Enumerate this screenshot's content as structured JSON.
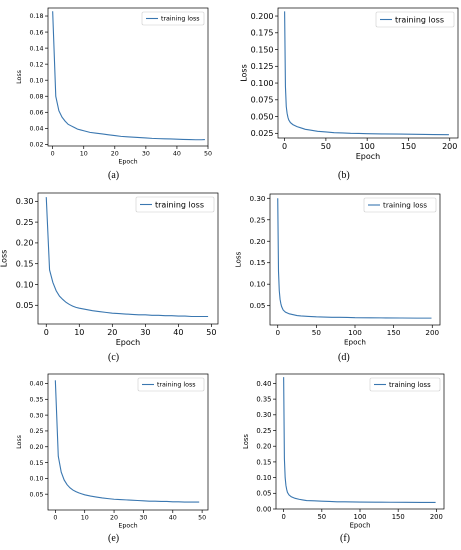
{
  "figure": {
    "panel_labels": [
      "(a)",
      "(b)",
      "(c)",
      "(d)",
      "(e)",
      "(f)"
    ]
  },
  "style": {
    "line_color": "#3a77b0",
    "axis_color": "#000000"
  },
  "chart_data": [
    {
      "type": "line",
      "xlabel": "Epoch",
      "ylabel": "Loss",
      "xlim": [
        -1.5,
        50
      ],
      "ylim": [
        0.018,
        0.19
      ],
      "xticks": [
        0,
        10,
        20,
        30,
        40,
        50
      ],
      "yticks": [
        0.02,
        0.04,
        0.06,
        0.08,
        0.1,
        0.12,
        0.14,
        0.16,
        0.18
      ],
      "ytick_labels": [
        "0.02",
        "0.04",
        "0.06",
        "0.08",
        "0.10",
        "0.12",
        "0.14",
        "0.16",
        "0.18"
      ],
      "legend": "top-right",
      "series": [
        {
          "name": "training loss",
          "x": [
            0,
            1,
            2,
            3,
            4,
            5,
            6,
            7,
            8,
            9,
            10,
            12,
            14,
            16,
            18,
            20,
            22,
            24,
            26,
            28,
            30,
            32,
            34,
            36,
            38,
            40,
            42,
            44,
            46,
            48,
            49
          ],
          "y": [
            0.186,
            0.08,
            0.062,
            0.054,
            0.049,
            0.045,
            0.043,
            0.041,
            0.039,
            0.038,
            0.037,
            0.035,
            0.034,
            0.033,
            0.032,
            0.031,
            0.03,
            0.0295,
            0.029,
            0.0285,
            0.028,
            0.0275,
            0.0272,
            0.027,
            0.0268,
            0.0265,
            0.0262,
            0.026,
            0.0258,
            0.0258,
            0.026
          ]
        }
      ]
    },
    {
      "type": "line",
      "xlabel": "Epoch",
      "ylabel": "Loss",
      "xlim": [
        -8,
        210
      ],
      "ylim": [
        0.018,
        0.212
      ],
      "xticks": [
        0,
        50,
        100,
        150,
        200
      ],
      "yticks": [
        0.025,
        0.05,
        0.075,
        0.1,
        0.125,
        0.15,
        0.175,
        0.2
      ],
      "ytick_labels": [
        "0.025",
        "0.050",
        "0.075",
        "0.100",
        "0.125",
        "0.150",
        "0.175",
        "0.200"
      ],
      "legend": "top-right",
      "series": [
        {
          "name": "training loss",
          "x": [
            0,
            1,
            2,
            3,
            4,
            5,
            7,
            10,
            15,
            20,
            25,
            30,
            40,
            50,
            60,
            70,
            80,
            90,
            100,
            120,
            140,
            160,
            180,
            199
          ],
          "y": [
            0.207,
            0.095,
            0.065,
            0.055,
            0.049,
            0.045,
            0.041,
            0.038,
            0.035,
            0.033,
            0.031,
            0.03,
            0.028,
            0.027,
            0.026,
            0.0255,
            0.025,
            0.0248,
            0.0245,
            0.024,
            0.0238,
            0.0235,
            0.0232,
            0.023
          ]
        }
      ]
    },
    {
      "type": "line",
      "xlabel": "Epoch",
      "ylabel": "Loss",
      "xlim": [
        -2.5,
        52
      ],
      "ylim": [
        0.005,
        0.32
      ],
      "xticks": [
        0,
        10,
        20,
        30,
        40,
        50
      ],
      "yticks": [
        0.05,
        0.1,
        0.15,
        0.2,
        0.25,
        0.3
      ],
      "ytick_labels": [
        "0.05",
        "0.10",
        "0.15",
        "0.20",
        "0.25",
        "0.30"
      ],
      "legend": "top-right",
      "series": [
        {
          "name": "training loss",
          "x": [
            0,
            1,
            2,
            3,
            4,
            5,
            6,
            7,
            8,
            9,
            10,
            12,
            14,
            16,
            18,
            20,
            22,
            24,
            26,
            28,
            30,
            32,
            34,
            36,
            38,
            40,
            42,
            44,
            46,
            48,
            49
          ],
          "y": [
            0.31,
            0.135,
            0.105,
            0.085,
            0.072,
            0.064,
            0.057,
            0.052,
            0.048,
            0.045,
            0.043,
            0.04,
            0.037,
            0.035,
            0.033,
            0.031,
            0.03,
            0.029,
            0.028,
            0.027,
            0.027,
            0.026,
            0.026,
            0.025,
            0.025,
            0.024,
            0.024,
            0.023,
            0.023,
            0.023,
            0.023
          ]
        }
      ]
    },
    {
      "type": "line",
      "xlabel": "Epoch",
      "ylabel": "Loss",
      "xlim": [
        -10,
        210
      ],
      "ylim": [
        0.005,
        0.31
      ],
      "xticks": [
        0,
        50,
        100,
        150,
        200
      ],
      "yticks": [
        0.05,
        0.1,
        0.15,
        0.2,
        0.25,
        0.3
      ],
      "ytick_labels": [
        "0.05",
        "0.10",
        "0.15",
        "0.20",
        "0.25",
        "0.30"
      ],
      "legend": "top-right",
      "series": [
        {
          "name": "training loss",
          "x": [
            0,
            1,
            2,
            3,
            4,
            5,
            7,
            10,
            15,
            20,
            25,
            30,
            40,
            50,
            60,
            70,
            80,
            90,
            100,
            120,
            140,
            160,
            180,
            199
          ],
          "y": [
            0.3,
            0.13,
            0.085,
            0.065,
            0.055,
            0.048,
            0.04,
            0.035,
            0.031,
            0.029,
            0.027,
            0.026,
            0.025,
            0.024,
            0.0235,
            0.023,
            0.0228,
            0.0225,
            0.022,
            0.0218,
            0.0215,
            0.0213,
            0.021,
            0.021
          ]
        }
      ]
    },
    {
      "type": "line",
      "xlabel": "Epoch",
      "ylabel": "Loss",
      "xlim": [
        -2.5,
        52
      ],
      "ylim": [
        0.0,
        0.43
      ],
      "xticks": [
        0,
        10,
        20,
        30,
        40,
        50
      ],
      "yticks": [
        0.05,
        0.1,
        0.15,
        0.2,
        0.25,
        0.3,
        0.35,
        0.4
      ],
      "ytick_labels": [
        "0.05",
        "0.10",
        "0.15",
        "0.20",
        "0.25",
        "0.30",
        "0.35",
        "0.40"
      ],
      "legend": "top-right",
      "series": [
        {
          "name": "training loss",
          "x": [
            0,
            1,
            2,
            3,
            4,
            5,
            6,
            7,
            8,
            9,
            10,
            12,
            14,
            16,
            18,
            20,
            22,
            24,
            26,
            28,
            30,
            32,
            34,
            36,
            38,
            40,
            42,
            44,
            46,
            48,
            49
          ],
          "y": [
            0.41,
            0.17,
            0.12,
            0.095,
            0.08,
            0.07,
            0.063,
            0.058,
            0.054,
            0.051,
            0.048,
            0.044,
            0.041,
            0.038,
            0.036,
            0.034,
            0.033,
            0.032,
            0.031,
            0.03,
            0.029,
            0.028,
            0.028,
            0.027,
            0.027,
            0.026,
            0.026,
            0.025,
            0.025,
            0.025,
            0.025
          ]
        }
      ]
    },
    {
      "type": "line",
      "xlabel": "Epoch",
      "ylabel": "Loss",
      "xlim": [
        -10,
        210
      ],
      "ylim": [
        0.0,
        0.43
      ],
      "xticks": [
        0,
        50,
        100,
        150,
        200
      ],
      "yticks": [
        0.0,
        0.05,
        0.1,
        0.15,
        0.2,
        0.25,
        0.3,
        0.35,
        0.4
      ],
      "ytick_labels": [
        "0.00",
        "0.05",
        "0.10",
        "0.15",
        "0.20",
        "0.25",
        "0.30",
        "0.35",
        "0.40"
      ],
      "legend": "top-right",
      "series": [
        {
          "name": "training loss",
          "x": [
            0,
            1,
            2,
            3,
            4,
            5,
            7,
            10,
            15,
            20,
            25,
            30,
            40,
            50,
            60,
            70,
            80,
            90,
            100,
            120,
            140,
            160,
            180,
            199
          ],
          "y": [
            0.42,
            0.16,
            0.1,
            0.075,
            0.062,
            0.053,
            0.045,
            0.039,
            0.034,
            0.031,
            0.029,
            0.027,
            0.026,
            0.025,
            0.024,
            0.023,
            0.0228,
            0.0225,
            0.022,
            0.0218,
            0.0215,
            0.0213,
            0.021,
            0.021
          ]
        }
      ]
    }
  ]
}
